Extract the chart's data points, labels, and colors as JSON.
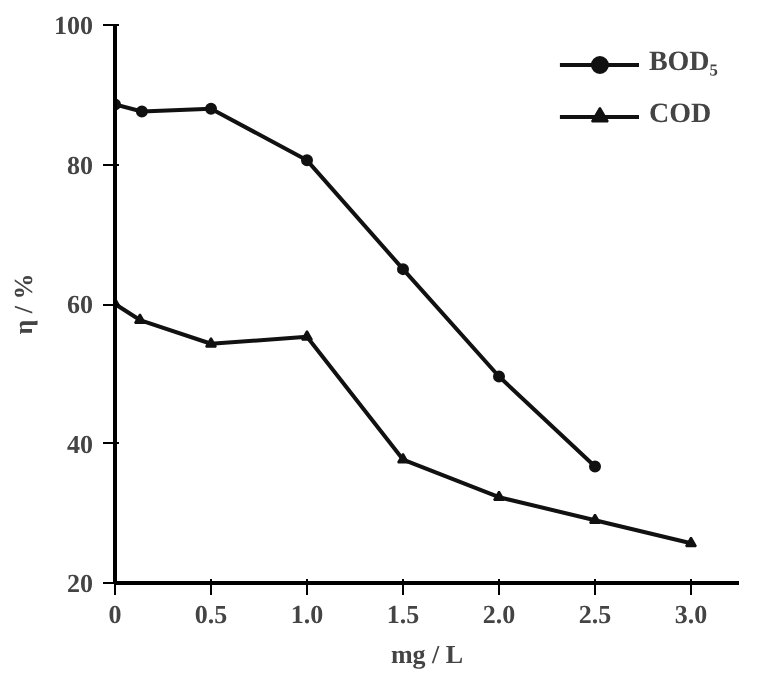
{
  "chart_data": {
    "type": "line",
    "xlabel": "mg / L",
    "ylabel": "η / %",
    "xlim": [
      0,
      3.25
    ],
    "ylim": [
      20,
      100
    ],
    "xticks": [
      0,
      {
        "value": 0.5,
        "label": "0.5"
      },
      {
        "value": 1,
        "label": "1.0"
      },
      {
        "value": 1.5,
        "label": "1.5"
      },
      {
        "value": 2,
        "label": "2.0"
      },
      {
        "value": 2.5,
        "label": "2.5"
      },
      {
        "value": 3,
        "label": "3.0"
      }
    ],
    "yticks": [
      20,
      40,
      60,
      80,
      100
    ],
    "grid": false,
    "legend": "top right",
    "series": [
      {
        "name": "BOD₅",
        "color": "#111111",
        "marker": "circle",
        "x": [
          0,
          0.14,
          0.5,
          1.0,
          1.5,
          2.0,
          2.5
        ],
        "values": [
          88.6,
          87.6,
          88,
          80.6,
          65,
          49.6,
          36.7
        ]
      },
      {
        "name": "COD",
        "color": "#111111",
        "marker": "triangle",
        "x": [
          0,
          0.13,
          0.5,
          1.0,
          1.5,
          2.0,
          2.5,
          3.0
        ],
        "values": [
          60,
          57.7,
          54.3,
          55.3,
          37.7,
          32.3,
          29,
          25.7
        ]
      }
    ]
  }
}
